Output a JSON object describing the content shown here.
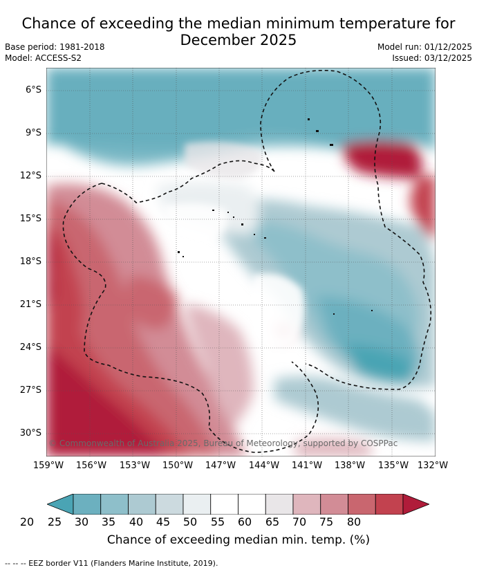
{
  "title_line1": "Chance of exceeding the median minimum temperature for",
  "title_line2": "December 2025",
  "meta": {
    "base_period": "Base period: 1981-2018",
    "model": "Model: ACCESS-S2",
    "model_run": "Model run: 01/12/2025",
    "issued": "Issued: 03/12/2025"
  },
  "lat_labels": [
    "6°S",
    "9°S",
    "12°S",
    "15°S",
    "18°S",
    "21°S",
    "24°S",
    "27°S",
    "30°S"
  ],
  "lon_labels": [
    "159°W",
    "156°W",
    "153°W",
    "150°W",
    "147°W",
    "144°W",
    "141°W",
    "138°W",
    "135°W",
    "132°W"
  ],
  "colorbar": {
    "ticks": [
      "20",
      "25",
      "30",
      "35",
      "40",
      "45",
      "50",
      "55",
      "60",
      "65",
      "70",
      "75",
      "80"
    ],
    "colors": [
      "#4aa4b4",
      "#6cb0bf",
      "#8ebfca",
      "#adcad2",
      "#ccdadf",
      "#eaeff1",
      "#ffffff",
      "#ffffff",
      "#e9e6e8",
      "#dfb6bd",
      "#d28c96",
      "#c9666f",
      "#c2424f",
      "#b01c3a"
    ],
    "label": "Chance of exceeding median min. temp. (%)"
  },
  "copyright": "© Commonwealth of Australia 2025, Bureau of Meteorology, supported by COSPPac",
  "footer": "-- -- -- EEZ border V11 (Flanders Marine Institute, 2019)."
}
